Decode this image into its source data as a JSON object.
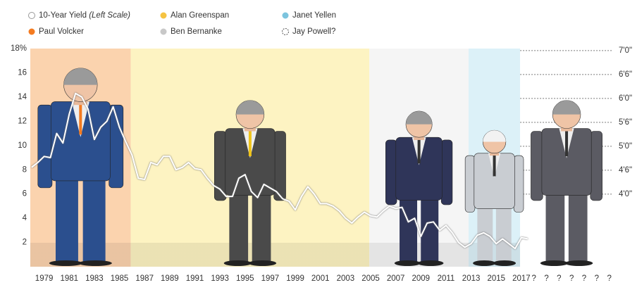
{
  "chart_data": {
    "type": "line",
    "x": [
      1978.0,
      1978.5,
      1979.0,
      1979.5,
      1980.0,
      1980.5,
      1981.0,
      1981.5,
      1982.0,
      1982.5,
      1983.0,
      1983.5,
      1984.0,
      1984.5,
      1985.0,
      1985.5,
      1986.0,
      1986.5,
      1987.0,
      1987.5,
      1988.0,
      1988.5,
      1989.0,
      1989.5,
      1990.0,
      1990.5,
      1991.0,
      1991.5,
      1992.0,
      1992.5,
      1993.0,
      1993.5,
      1994.0,
      1994.5,
      1995.0,
      1995.5,
      1996.0,
      1996.5,
      1997.0,
      1997.5,
      1998.0,
      1998.5,
      1999.0,
      1999.5,
      2000.0,
      2000.5,
      2001.0,
      2001.5,
      2002.0,
      2002.5,
      2003.0,
      2003.5,
      2004.0,
      2004.5,
      2005.0,
      2005.5,
      2006.0,
      2006.5,
      2007.0,
      2007.5,
      2008.0,
      2008.5,
      2009.0,
      2009.5,
      2010.0,
      2010.5,
      2011.0,
      2011.5,
      2012.0,
      2012.5,
      2013.0,
      2013.5,
      2014.0,
      2014.5,
      2015.0,
      2015.5,
      2016.0,
      2016.5,
      2017.0,
      2017.5
    ],
    "series": [
      {
        "name": "10-Year Yield",
        "name_note": "(Left Scale)",
        "color": "#ffffff",
        "values": [
          8.2,
          8.6,
          9.1,
          9.0,
          11.0,
          10.2,
          12.6,
          14.3,
          14.0,
          13.0,
          10.5,
          11.5,
          12.0,
          13.2,
          11.5,
          10.3,
          9.2,
          7.3,
          7.2,
          8.6,
          8.4,
          9.1,
          9.1,
          8.0,
          8.2,
          8.6,
          8.1,
          8.0,
          7.3,
          6.7,
          6.4,
          5.8,
          5.8,
          7.3,
          7.6,
          6.2,
          5.7,
          6.8,
          6.5,
          6.2,
          5.6,
          5.4,
          4.7,
          5.8,
          6.6,
          6.0,
          5.2,
          5.2,
          5.0,
          4.6,
          4.0,
          3.6,
          4.1,
          4.5,
          4.2,
          4.1,
          4.6,
          5.0,
          4.8,
          4.9,
          3.7,
          4.0,
          2.5,
          3.6,
          3.7,
          3.0,
          3.4,
          2.8,
          2.0,
          1.6,
          1.9,
          2.6,
          2.8,
          2.5,
          1.9,
          2.3,
          1.9,
          1.5,
          2.4,
          2.3
        ]
      }
    ],
    "chairs": [
      {
        "name": "Paul Volcker",
        "color": "#f47b20",
        "band": "#fbd3ae",
        "suit": "#2b4f8e",
        "term": [
          1977.9,
          1985.9
        ],
        "height": 79.6
      },
      {
        "name": "Alan Greenspan",
        "color": "#f5c342",
        "band": "#fdf3c2",
        "suit": "#4a4a4a",
        "term": [
          1985.9,
          2004.9
        ],
        "height": 71.5
      },
      {
        "name": "Ben Bernanke",
        "color": "#c8c8c8",
        "band": "#f5f5f5",
        "suit": "#2f3559",
        "term": [
          2004.9,
          2012.8
        ],
        "height": 68.8
      },
      {
        "name": "Janet Yellen",
        "color": "#7cc4de",
        "band": "#dcf1f8",
        "suit": "#c9cdd2",
        "term": [
          2012.8,
          2016.9
        ],
        "height": 64.0
      },
      {
        "name": "Jay Powell?",
        "color": "#555555",
        "band": "#ffffff",
        "suit": "#5b5b63",
        "term": [
          2016.9,
          2024.3
        ],
        "height": 71.5
      }
    ],
    "xlim": [
      1977.9,
      2024.3
    ],
    "xticks": [
      1979,
      1981,
      1983,
      1985,
      1987,
      1989,
      1991,
      1993,
      1995,
      1997,
      1999,
      2001,
      2003,
      2005,
      2007,
      2009,
      2011,
      2013,
      2015,
      2017,
      {
        "value": 2018,
        "label": "?"
      },
      {
        "value": 2019,
        "label": "?"
      },
      {
        "value": 2020,
        "label": "?"
      },
      {
        "value": 2021,
        "label": "?"
      },
      {
        "value": 2022,
        "label": "?"
      },
      {
        "value": 2023,
        "label": "?"
      },
      {
        "value": 2024,
        "label": "?"
      }
    ],
    "ylim": [
      0,
      18
    ],
    "yticks": [
      {
        "value": 18,
        "label": "18%"
      },
      16,
      14,
      12,
      10,
      8,
      6,
      4,
      2
    ],
    "y2lim": [
      29.8,
      84.5
    ],
    "y2ticks": [
      {
        "value": 84,
        "label": "7'0\""
      },
      {
        "value": 78,
        "label": "6'6\""
      },
      {
        "value": 72,
        "label": "6'0\""
      },
      {
        "value": 66,
        "label": "5'6\""
      },
      {
        "value": 60,
        "label": "5'0\""
      },
      {
        "value": 54,
        "label": "4'6\""
      },
      {
        "value": 48,
        "label": "4'0\""
      }
    ],
    "y2grid": true
  }
}
